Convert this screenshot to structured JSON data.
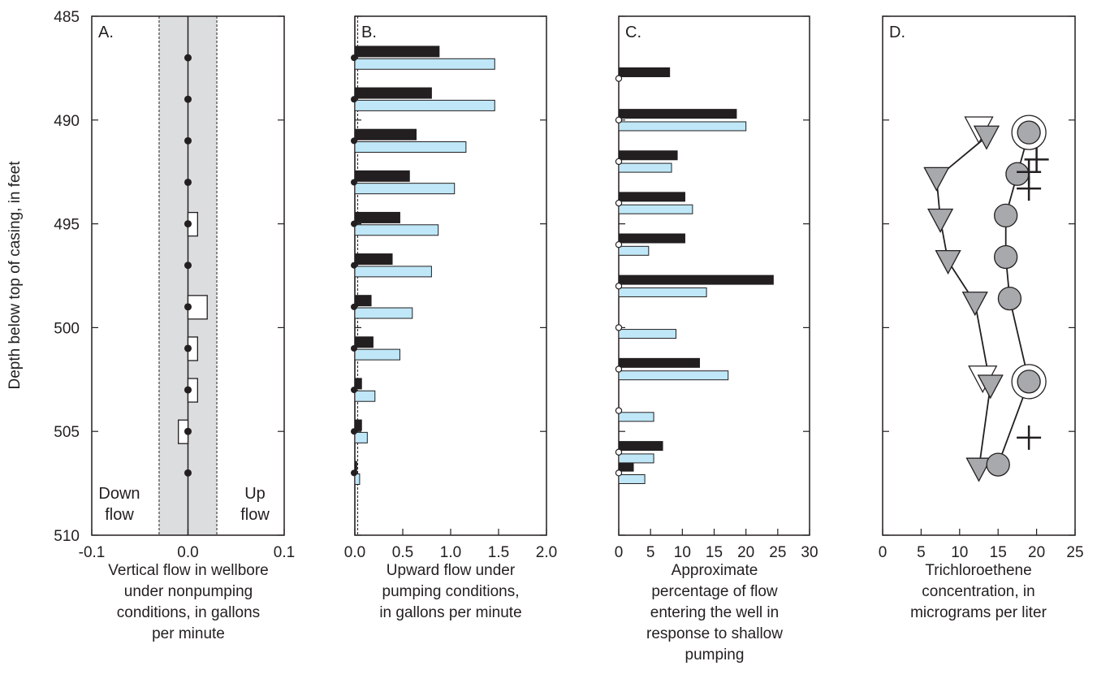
{
  "y_axis": {
    "label": "Depth below top of casing, in feet",
    "range": [
      485,
      510
    ],
    "ticks": [
      485,
      490,
      495,
      500,
      505,
      510
    ]
  },
  "colors": {
    "dark": "#231f20",
    "light_blue": "#bfe7f7",
    "shade": "#dcdddf",
    "gray_marker": "#a7a9ac"
  },
  "chart_data": [
    {
      "panel": "A.",
      "type": "bar",
      "orientation": "horizontal",
      "xlabel": [
        "Vertical flow in wellbore",
        "under nonpumping",
        "conditions, in gallons",
        "per minute"
      ],
      "xlim": [
        -0.1,
        0.1
      ],
      "xtick_labels": [
        "-0.1",
        "0.0",
        "0.1"
      ],
      "xticks": [
        -0.1,
        0,
        0.1
      ],
      "shaded_range": [
        -0.03,
        0.03
      ],
      "annotations": {
        "left": [
          "Down",
          "flow"
        ],
        "right": [
          "Up",
          "flow"
        ]
      },
      "points": [
        {
          "depth": 487.0,
          "flow": 0
        },
        {
          "depth": 489.0,
          "flow": 0
        },
        {
          "depth": 491.0,
          "flow": 0
        },
        {
          "depth": 493.0,
          "flow": 0
        },
        {
          "depth": 495.0,
          "flow": 0.01
        },
        {
          "depth": 497.0,
          "flow": 0
        },
        {
          "depth": 499.0,
          "flow": 0.02
        },
        {
          "depth": 501.0,
          "flow": 0.01
        },
        {
          "depth": 503.0,
          "flow": 0.01
        },
        {
          "depth": 505.0,
          "flow": -0.01
        },
        {
          "depth": 507.0,
          "flow": 0
        }
      ]
    },
    {
      "panel": "B.",
      "type": "bar",
      "orientation": "horizontal",
      "xlabel": [
        "Upward flow under",
        "pumping conditions,",
        "in gallons per minute"
      ],
      "xlim": [
        0,
        2.0
      ],
      "xtick_labels": [
        "0.0",
        "0.5",
        "1.0",
        "1.5",
        "2.0"
      ],
      "xticks": [
        0,
        0.5,
        1.0,
        1.5,
        2.0
      ],
      "dashed_line": 0.03,
      "series": [
        {
          "color": "dark",
          "depths": [
            486.7,
            488.7,
            490.7,
            492.7,
            494.7,
            496.7,
            498.7,
            500.7,
            502.7,
            504.7,
            506.7
          ],
          "values": [
            0.88,
            0.8,
            0.64,
            0.57,
            0.47,
            0.39,
            0.17,
            0.19,
            0.07,
            0.07,
            0.02
          ]
        },
        {
          "color": "light_blue",
          "depths": [
            487.3,
            489.3,
            491.3,
            493.3,
            495.3,
            497.3,
            499.3,
            501.3,
            503.3,
            505.3,
            507.3
          ],
          "values": [
            1.46,
            1.46,
            1.16,
            1.04,
            0.87,
            0.8,
            0.6,
            0.47,
            0.21,
            0.13,
            0.05
          ]
        }
      ],
      "markers_at_zero": [
        487.0,
        489.0,
        491.0,
        493.0,
        495.0,
        497.0,
        499.0,
        501.0,
        503.0,
        505.0,
        507.0
      ]
    },
    {
      "panel": "C.",
      "type": "bar",
      "orientation": "horizontal",
      "xlabel": [
        "Approximate",
        "percentage of flow",
        "entering the well in",
        "response to shallow",
        "pumping"
      ],
      "xlim": [
        0,
        30
      ],
      "xtick_labels": [
        "0",
        "5",
        "10",
        "15",
        "20",
        "25",
        "30"
      ],
      "xticks": [
        0,
        5,
        10,
        15,
        20,
        25,
        30
      ],
      "series": [
        {
          "color": "dark",
          "depths": [
            487.7,
            489.7,
            491.7,
            493.7,
            495.7,
            497.7,
            501.7,
            505.7,
            506.7
          ],
          "values": [
            8,
            18.5,
            9.2,
            10.4,
            10.4,
            24.3,
            12.7,
            6.9,
            2.3
          ]
        },
        {
          "color": "light_blue",
          "depths": [
            490.3,
            492.3,
            494.3,
            496.3,
            498.3,
            500.3,
            502.3,
            504.3,
            506.3,
            507.3
          ],
          "values": [
            20,
            8.3,
            11.6,
            4.7,
            13.8,
            9,
            17.2,
            5.5,
            5.5,
            4.1
          ]
        }
      ],
      "markers_at_zero": [
        488.0,
        490.0,
        492.0,
        494.0,
        496.0,
        498.0,
        500.0,
        502.0,
        504.0,
        506.0,
        507.0
      ]
    },
    {
      "panel": "D.",
      "type": "line",
      "xlabel": [
        "Trichloroethene",
        "concentration, in",
        "micrograms per liter"
      ],
      "xlim": [
        0,
        25
      ],
      "xtick_labels": [
        "0",
        "5",
        "10",
        "15",
        "20",
        "25"
      ],
      "xticks": [
        0,
        5,
        10,
        15,
        20,
        25
      ],
      "triangle_series": [
        {
          "x": 13.5,
          "depth": 490.8
        },
        {
          "x": 7,
          "depth": 492.8
        },
        {
          "x": 7.5,
          "depth": 494.8
        },
        {
          "x": 8.5,
          "depth": 496.8
        },
        {
          "x": 12,
          "depth": 498.8
        },
        {
          "x": 14,
          "depth": 502.8
        },
        {
          "x": 12.5,
          "depth": 506.8
        }
      ],
      "circle_series": [
        {
          "x": 19,
          "depth": 490.6
        },
        {
          "x": 17.5,
          "depth": 492.6
        },
        {
          "x": 16,
          "depth": 494.6
        },
        {
          "x": 16,
          "depth": 496.6
        },
        {
          "x": 16.5,
          "depth": 498.6
        },
        {
          "x": 19,
          "depth": 502.6
        },
        {
          "x": 15,
          "depth": 506.6
        }
      ],
      "open_triangles": [
        {
          "x": 12.5,
          "depth": 490.4
        },
        {
          "x": 13,
          "depth": 502.4
        }
      ],
      "open_circles": [
        {
          "x": 19,
          "depth": 490.6
        },
        {
          "x": 19,
          "depth": 502.6
        }
      ],
      "plus_markers": [
        {
          "x": 20,
          "depth": 491.9
        },
        {
          "x": 19,
          "depth": 492.5
        },
        {
          "x": 19,
          "depth": 493.3
        },
        {
          "x": 19,
          "depth": 505.3
        }
      ]
    }
  ]
}
